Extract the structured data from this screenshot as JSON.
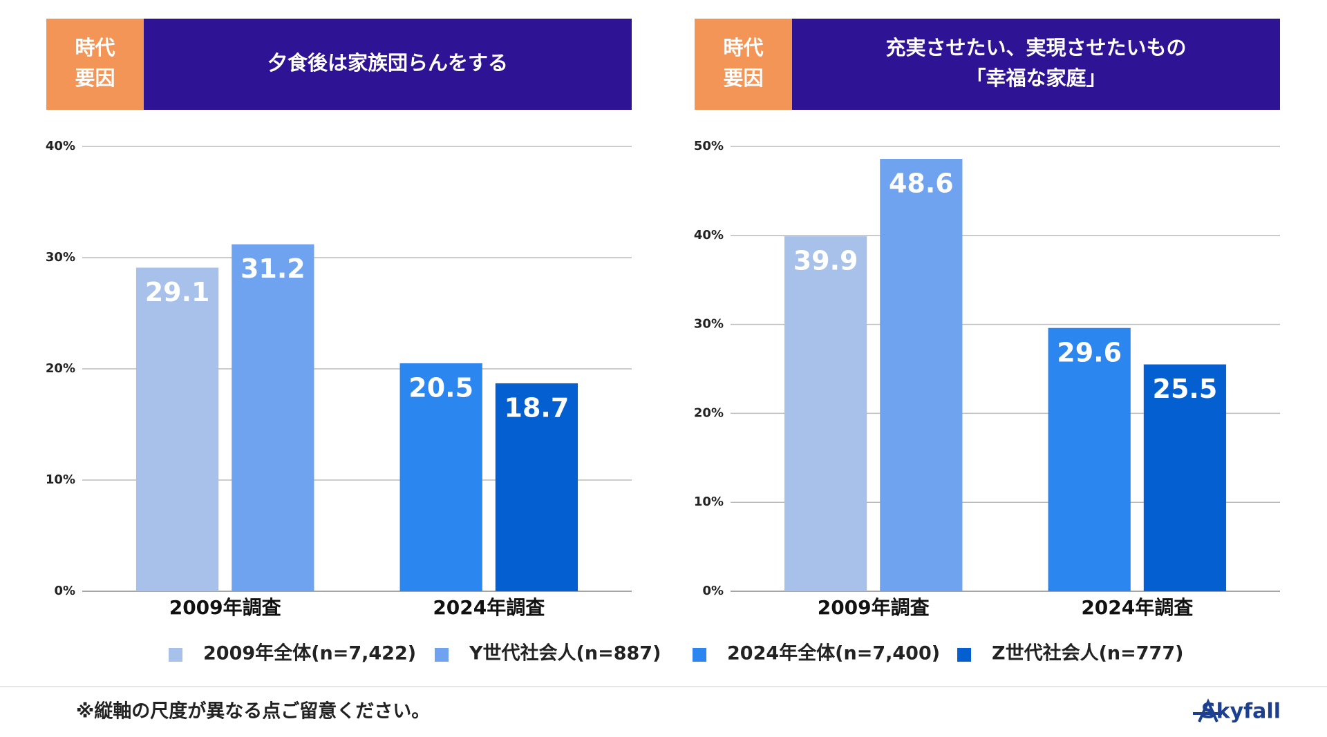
{
  "chart_data": [
    {
      "type": "bar",
      "header_tag": [
        "時代",
        "要因"
      ],
      "title": [
        "夕食後は家族団らんをする"
      ],
      "categories": [
        "2009年調査",
        "2024年調査"
      ],
      "series": [
        {
          "name": "2009年全体(n=7,422)",
          "color": "#a7c1ea",
          "values": [
            29.1,
            null
          ]
        },
        {
          "name": "Y世代社会人(n=887)",
          "color": "#6fa3ef",
          "values": [
            31.2,
            null
          ]
        },
        {
          "name": "2024年全体(n=7,400)",
          "color": "#2b86f0",
          "values": [
            null,
            20.5
          ]
        },
        {
          "name": "Z世代社会人(n=777)",
          "color": "#0460d1",
          "values": [
            null,
            18.7
          ]
        }
      ],
      "ylim": [
        0,
        40
      ],
      "yticks": [
        {
          "value": 0,
          "label": "0%"
        },
        {
          "value": 10,
          "label": "10%"
        },
        {
          "value": 20,
          "label": "20%"
        },
        {
          "value": 30,
          "label": "30%"
        },
        {
          "value": 40,
          "label": "40%"
        }
      ],
      "grid": true
    },
    {
      "type": "bar",
      "header_tag": [
        "時代",
        "要因"
      ],
      "title": [
        "充実させたい、実現させたいもの",
        "「幸福な家庭」"
      ],
      "categories": [
        "2009年調査",
        "2024年調査"
      ],
      "series": [
        {
          "name": "2009年全体(n=7,422)",
          "color": "#a7c1ea",
          "values": [
            39.9,
            null
          ]
        },
        {
          "name": "Y世代社会人(n=887)",
          "color": "#6fa3ef",
          "values": [
            48.6,
            null
          ]
        },
        {
          "name": "2024年全体(n=7,400)",
          "color": "#2b86f0",
          "values": [
            null,
            29.6
          ]
        },
        {
          "name": "Z世代社会人(n=777)",
          "color": "#0460d1",
          "values": [
            null,
            25.5
          ]
        }
      ],
      "ylim": [
        0,
        50
      ],
      "yticks": [
        {
          "value": 0,
          "label": "0%"
        },
        {
          "value": 10,
          "label": "10%"
        },
        {
          "value": 20,
          "label": "20%"
        },
        {
          "value": 30,
          "label": "30%"
        },
        {
          "value": 40,
          "label": "40%"
        },
        {
          "value": 50,
          "label": "50%"
        }
      ],
      "grid": true
    }
  ],
  "footnote": "※縦軸の尺度が異なる点ご留意ください。",
  "logo": "Skyfall"
}
